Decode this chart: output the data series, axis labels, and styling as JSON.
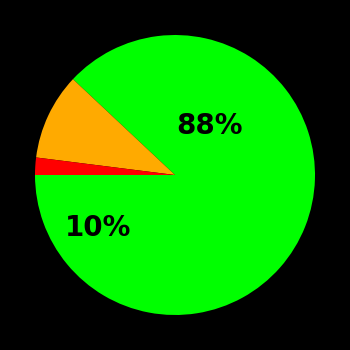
{
  "slices": [
    88,
    10,
    2
  ],
  "colors": [
    "#00ff00",
    "#ffaa00",
    "#ff0000"
  ],
  "labels": [
    "88%",
    "10%",
    ""
  ],
  "background_color": "#000000",
  "startangle": 180,
  "label_fontsize": 20,
  "label_fontweight": "bold",
  "figsize": [
    3.5,
    3.5
  ],
  "dpi": 100
}
